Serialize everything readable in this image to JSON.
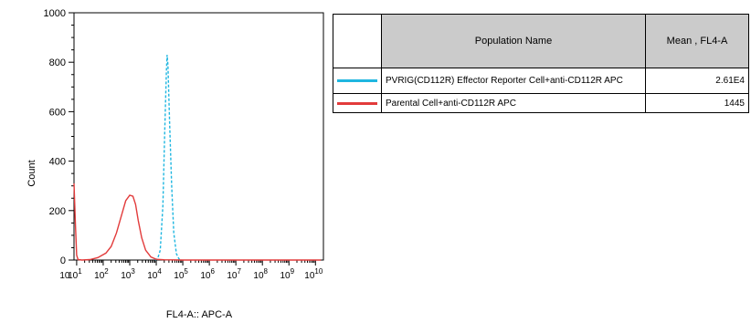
{
  "chart_data": {
    "type": "line",
    "xlabel": "FL4-A:: APC-A",
    "ylabel": "Count",
    "ylim": [
      0,
      1000
    ],
    "y_ticks": [
      0,
      200,
      400,
      600,
      800,
      1000
    ],
    "x_scale": "log",
    "x_tick_labels": [
      {
        "base": "10",
        "exp": "1"
      },
      {
        "base": "10",
        "exp": "2"
      },
      {
        "base": "10",
        "exp": "3"
      },
      {
        "base": "10",
        "exp": "4"
      },
      {
        "base": "10",
        "exp": "5"
      },
      {
        "base": "10",
        "exp": "6"
      },
      {
        "base": "10",
        "exp": "7"
      },
      {
        "base": "10",
        "exp": "8"
      },
      {
        "base": "10",
        "exp": "9"
      },
      {
        "base": "10",
        "exp": "10"
      }
    ],
    "x_tick_extra": "10",
    "series": [
      {
        "name": "PVRIG(CD112R) Effector Reporter Cell+anti-CD112R APC",
        "color": "#1fb6e0",
        "points": [
          [
            3.95,
            0
          ],
          [
            4.05,
            5
          ],
          [
            4.15,
            40
          ],
          [
            4.25,
            220
          ],
          [
            4.32,
            520
          ],
          [
            4.38,
            760
          ],
          [
            4.41,
            830
          ],
          [
            4.44,
            790
          ],
          [
            4.5,
            560
          ],
          [
            4.58,
            300
          ],
          [
            4.66,
            110
          ],
          [
            4.76,
            25
          ],
          [
            4.86,
            4
          ],
          [
            4.95,
            0
          ]
        ]
      },
      {
        "name": "Parental Cell+anti-CD112R APC",
        "color": "#e23b3b",
        "points": [
          [
            0.9,
            310
          ],
          [
            0.95,
            150
          ],
          [
            1.0,
            20
          ],
          [
            1.05,
            2
          ],
          [
            1.2,
            0
          ],
          [
            1.5,
            2
          ],
          [
            1.8,
            10
          ],
          [
            2.1,
            28
          ],
          [
            2.3,
            55
          ],
          [
            2.5,
            110
          ],
          [
            2.7,
            185
          ],
          [
            2.85,
            240
          ],
          [
            3.0,
            262
          ],
          [
            3.12,
            258
          ],
          [
            3.22,
            225
          ],
          [
            3.32,
            160
          ],
          [
            3.45,
            90
          ],
          [
            3.6,
            40
          ],
          [
            3.8,
            12
          ],
          [
            4.0,
            3
          ],
          [
            4.3,
            1
          ],
          [
            5.0,
            0
          ],
          [
            6.0,
            0
          ],
          [
            7.0,
            0
          ],
          [
            8.0,
            0
          ],
          [
            9.0,
            0
          ],
          [
            10.2,
            0
          ]
        ]
      }
    ],
    "legend": {
      "header_name": "Population Name",
      "header_mean": "Mean , FL4-A",
      "rows": [
        {
          "name": "PVRIG(CD112R) Effector Reporter Cell+anti-CD112R APC",
          "mean": "2.61E4",
          "color": "#1fb6e0"
        },
        {
          "name": "Parental Cell+anti-CD112R APC",
          "mean": "1445",
          "color": "#e23b3b"
        }
      ]
    }
  }
}
